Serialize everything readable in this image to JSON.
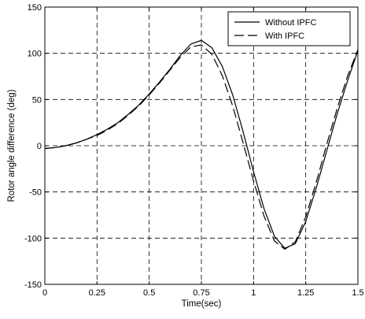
{
  "chart_data": {
    "type": "line",
    "title": "",
    "xlabel": "Time(sec)",
    "ylabel": "Rotor angle difference (deg)",
    "xlim": [
      0,
      1.5
    ],
    "ylim": [
      -150,
      150
    ],
    "grid": true,
    "grid_style": "dashed",
    "legend_position": "top-right",
    "x_ticks": [
      0,
      0.25,
      0.5,
      0.75,
      1,
      1.25,
      1.5
    ],
    "x_tick_labels": [
      "0",
      "0.25",
      "0.5",
      "0.75",
      "1",
      "1.25",
      "1.5"
    ],
    "y_ticks": [
      -150,
      -100,
      -50,
      0,
      50,
      100,
      150
    ],
    "y_tick_labels": [
      "-150",
      "-100",
      "-50",
      "0",
      "50",
      "100",
      "150"
    ],
    "series": [
      {
        "name": "Without IPFC",
        "line_style": "solid",
        "color": "#000000",
        "x": [
          0,
          0.05,
          0.1,
          0.15,
          0.2,
          0.25,
          0.3,
          0.35,
          0.4,
          0.45,
          0.5,
          0.55,
          0.6,
          0.65,
          0.7,
          0.75,
          0.8,
          0.85,
          0.9,
          0.95,
          1.0,
          1.05,
          1.1,
          1.15,
          1.2,
          1.25,
          1.3,
          1.35,
          1.4,
          1.45,
          1.5
        ],
        "y": [
          -3,
          -2,
          0,
          3,
          7,
          12,
          18,
          25,
          34,
          44,
          56,
          69,
          83,
          98,
          110,
          114,
          106,
          86,
          55,
          15,
          -28,
          -68,
          -98,
          -111,
          -106,
          -82,
          -46,
          -6,
          34,
          70,
          103
        ]
      },
      {
        "name": "With IPFC",
        "line_style": "dashed",
        "color": "#000000",
        "x": [
          0,
          0.05,
          0.1,
          0.15,
          0.2,
          0.25,
          0.3,
          0.35,
          0.4,
          0.45,
          0.5,
          0.55,
          0.6,
          0.65,
          0.7,
          0.75,
          0.8,
          0.85,
          0.9,
          0.95,
          1.0,
          1.05,
          1.1,
          1.15,
          1.2,
          1.25,
          1.3,
          1.35,
          1.4,
          1.45,
          1.5
        ],
        "y": [
          -3,
          -2,
          0,
          3,
          7,
          11,
          17,
          24,
          33,
          43,
          55,
          68,
          82,
          96,
          107,
          109,
          99,
          76,
          43,
          3,
          -38,
          -76,
          -103,
          -112,
          -104,
          -77,
          -40,
          1,
          40,
          75,
          104
        ]
      }
    ]
  }
}
